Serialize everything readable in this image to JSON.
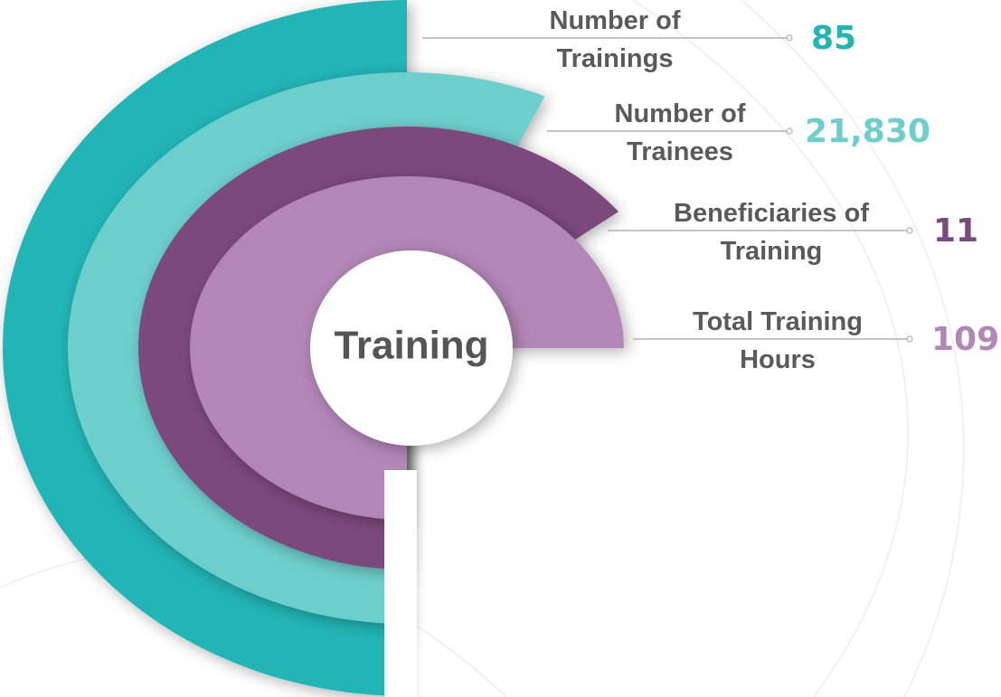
{
  "title": "Training",
  "items": [
    {
      "label_lines": [
        "Number of",
        "Trainings"
      ],
      "value": "85",
      "color": "#21b5b6"
    },
    {
      "label_lines": [
        "Number of",
        "Trainees"
      ],
      "value": "21,830",
      "color": "#6dcfcc"
    },
    {
      "label_lines": [
        "Beneficiaries of",
        "Training"
      ],
      "value": "11",
      "color": "#7b4a7d"
    },
    {
      "label_lines": [
        "Total Training",
        "Hours"
      ],
      "value": "109",
      "color": "#b386b8"
    }
  ]
}
